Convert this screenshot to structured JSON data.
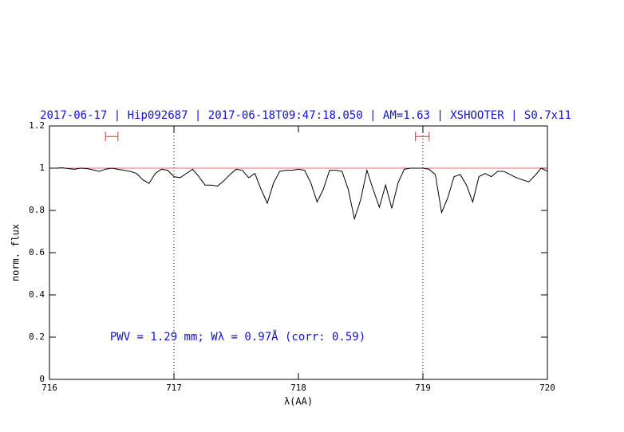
{
  "chart_data": {
    "type": "line",
    "title": "2017-06-17 | Hip092687 | 2017-06-18T09:47:18.050 | AM=1.63 | XSHOOTER | S0.7x11",
    "annotation": "PWV = 1.29 mm; Wλ = 0.97Å (corr: 0.59)",
    "x_label": "λ(AA)",
    "y_label": "norm. flux",
    "xlim": [
      716,
      720
    ],
    "ylim": [
      0,
      1.2
    ],
    "xticks": [
      716,
      717,
      718,
      719,
      720
    ],
    "yticks": [
      0,
      0.2,
      0.4,
      0.6,
      0.8,
      1,
      1.2
    ],
    "color": "#000000",
    "reference_line": 1,
    "reference_color": "#e03030",
    "vlines": [
      717,
      719
    ],
    "windows": [
      [
        716.45,
        716.55
      ],
      [
        718.94,
        719.05
      ]
    ],
    "window_y": 1.15,
    "x": [
      716.0,
      716.05,
      716.1,
      716.15,
      716.2,
      716.25,
      716.3,
      716.35,
      716.4,
      716.45,
      716.5,
      716.55,
      716.6,
      716.65,
      716.7,
      716.75,
      716.8,
      716.85,
      716.9,
      716.95,
      717.0,
      717.05,
      717.1,
      717.15,
      717.2,
      717.25,
      717.3,
      717.35,
      717.4,
      717.45,
      717.5,
      717.55,
      717.6,
      717.65,
      717.7,
      717.75,
      717.8,
      717.85,
      717.9,
      717.95,
      718.0,
      718.05,
      718.1,
      718.15,
      718.2,
      718.25,
      718.3,
      718.35,
      718.4,
      718.45,
      718.5,
      718.55,
      718.6,
      718.65,
      718.7,
      718.75,
      718.8,
      718.85,
      718.9,
      718.95,
      719.0,
      719.05,
      719.1,
      719.15,
      719.2,
      719.25,
      719.3,
      719.35,
      719.4,
      719.45,
      719.5,
      719.55,
      719.6,
      719.65,
      719.7,
      719.75,
      719.8,
      719.85,
      719.9,
      719.95,
      720.0
    ],
    "values": [
      1.0,
      1.0,
      1.002,
      0.998,
      0.995,
      1.0,
      0.998,
      0.992,
      0.985,
      0.995,
      1.0,
      0.995,
      0.99,
      0.985,
      0.975,
      0.945,
      0.928,
      0.975,
      0.995,
      0.99,
      0.96,
      0.955,
      0.975,
      0.995,
      0.96,
      0.92,
      0.92,
      0.915,
      0.94,
      0.97,
      0.995,
      0.99,
      0.955,
      0.975,
      0.9,
      0.834,
      0.93,
      0.985,
      0.99,
      0.99,
      0.995,
      0.99,
      0.93,
      0.84,
      0.9,
      0.99,
      0.99,
      0.985,
      0.9,
      0.76,
      0.85,
      0.99,
      0.9,
      0.815,
      0.92,
      0.81,
      0.93,
      0.995,
      1.0,
      1.0,
      1.0,
      0.995,
      0.97,
      0.79,
      0.86,
      0.96,
      0.97,
      0.92,
      0.84,
      0.96,
      0.975,
      0.96,
      0.985,
      0.985,
      0.97,
      0.955,
      0.945,
      0.935,
      0.965,
      1.0,
      0.985
    ]
  }
}
